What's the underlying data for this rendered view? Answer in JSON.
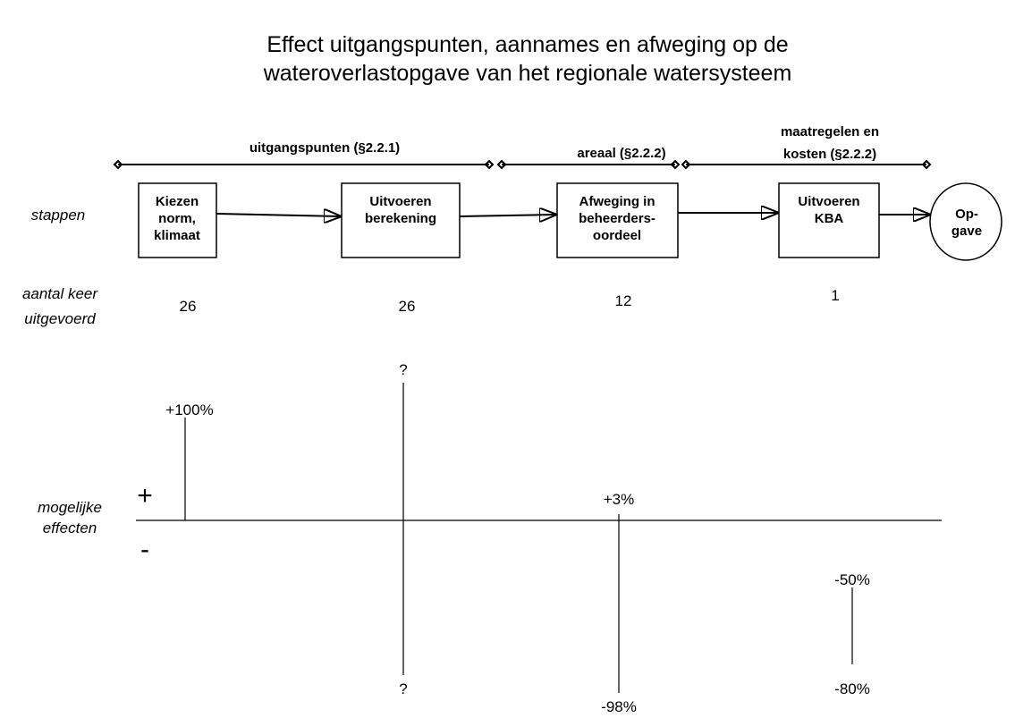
{
  "title": [
    "Effect uitgangspunten, aannames en afweging op de",
    "wateroverlastopgave van het regionale watersysteem"
  ],
  "phases": [
    {
      "label": [
        "uitgangspunten (§2.2.1)"
      ]
    },
    {
      "label": [
        "areaal (§2.2.2)"
      ]
    },
    {
      "label": [
        "maatregelen en",
        "kosten (§2.2.2)"
      ]
    }
  ],
  "row_labels": {
    "steps": [
      "stappen"
    ],
    "counts": [
      "aantal keer",
      "uitgevoerd"
    ],
    "effects": [
      "mogelijke",
      "effecten"
    ]
  },
  "steps": [
    {
      "label": [
        "Kiezen",
        "norm,",
        "klimaat"
      ],
      "count": 26
    },
    {
      "label": [
        "Uitvoeren",
        "berekening"
      ],
      "count": 26
    },
    {
      "label": [
        "Afweging in",
        "beheerders-",
        "oordeel"
      ],
      "count": 12
    },
    {
      "label": [
        "Uitvoeren",
        "KBA"
      ],
      "count": 1
    }
  ],
  "result": [
    "Op-",
    "gave"
  ],
  "axis_signs": {
    "plus": "+",
    "minus": "-"
  },
  "effects": [
    {
      "top": "+100%"
    },
    {
      "top": "?",
      "bottom": "?"
    },
    {
      "top": "+3%",
      "bottom": "-98%"
    },
    {
      "top": "-50%",
      "bottom": "-80%"
    }
  ]
}
